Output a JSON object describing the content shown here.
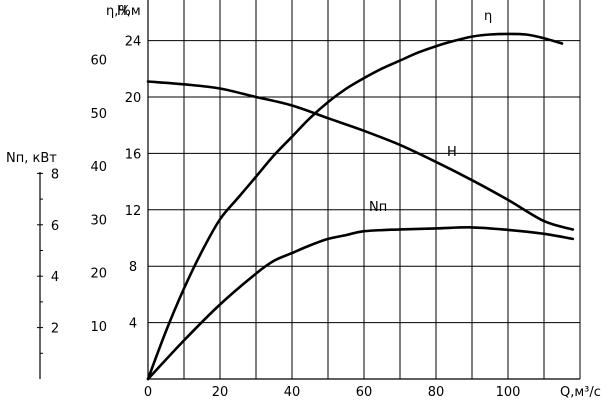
{
  "chart_data": {
    "type": "line",
    "grid": true,
    "axes": {
      "x": {
        "label": "Q,м³/с",
        "range": [
          0,
          120
        ],
        "ticks": [
          0,
          20,
          40,
          60,
          80,
          100
        ],
        "tick_labels": [
          "0",
          "20",
          "40",
          "60",
          "80",
          "100"
        ],
        "grid_step": 10
      },
      "y_eta": {
        "label": "η,%",
        "range": [
          0,
          70
        ],
        "ticks": [
          10,
          20,
          30,
          40,
          50,
          60
        ],
        "tick_labels": [
          "10",
          "20",
          "30",
          "40",
          "50",
          "60"
        ]
      },
      "y_H": {
        "label": "Н,м",
        "range": [
          0,
          28
        ],
        "ticks": [
          4,
          8,
          12,
          16,
          20,
          24
        ],
        "tick_labels": [
          "4",
          "8",
          "12",
          "16",
          "20",
          "24"
        ]
      },
      "y_N": {
        "label": "Nп, кВт",
        "range": [
          0,
          9.2
        ],
        "ticks": [
          2,
          4,
          6,
          8
        ],
        "tick_labels": [
          "2",
          "4",
          "6",
          "8"
        ]
      }
    },
    "series": [
      {
        "name": "η",
        "axis": "y_eta",
        "points": [
          [
            0,
            0
          ],
          [
            5,
            9
          ],
          [
            10,
            17
          ],
          [
            15,
            24
          ],
          [
            20,
            30
          ],
          [
            25,
            34
          ],
          [
            30,
            38
          ],
          [
            35,
            42
          ],
          [
            40,
            45.5
          ],
          [
            45,
            49
          ],
          [
            50,
            52
          ],
          [
            55,
            54.5
          ],
          [
            60,
            56.5
          ],
          [
            65,
            58.3
          ],
          [
            70,
            59.8
          ],
          [
            75,
            61.3
          ],
          [
            80,
            62.5
          ],
          [
            85,
            63.5
          ],
          [
            90,
            64.3
          ],
          [
            95,
            64.7
          ],
          [
            100,
            64.8
          ],
          [
            105,
            64.7
          ],
          [
            110,
            64
          ],
          [
            115,
            63
          ]
        ]
      },
      {
        "name": "H",
        "axis": "y_H",
        "points": [
          [
            0,
            21.1
          ],
          [
            10,
            20.9
          ],
          [
            20,
            20.6
          ],
          [
            30,
            20
          ],
          [
            40,
            19.4
          ],
          [
            50,
            18.5
          ],
          [
            60,
            17.6
          ],
          [
            70,
            16.6
          ],
          [
            80,
            15.4
          ],
          [
            90,
            14.1
          ],
          [
            100,
            12.7
          ],
          [
            110,
            11.2
          ],
          [
            118,
            10.6
          ]
        ]
      },
      {
        "name": "Nп",
        "axis": "y_N",
        "points": [
          [
            0,
            0
          ],
          [
            10,
            1.5
          ],
          [
            20,
            2.9
          ],
          [
            30,
            4.1
          ],
          [
            35,
            4.6
          ],
          [
            40,
            4.9
          ],
          [
            45,
            5.2
          ],
          [
            50,
            5.45
          ],
          [
            55,
            5.6
          ],
          [
            60,
            5.75
          ],
          [
            70,
            5.82
          ],
          [
            80,
            5.86
          ],
          [
            90,
            5.9
          ],
          [
            100,
            5.8
          ],
          [
            110,
            5.65
          ],
          [
            118,
            5.45
          ]
        ]
      }
    ],
    "series_labels": [
      "η",
      "Н",
      "Nп"
    ]
  }
}
